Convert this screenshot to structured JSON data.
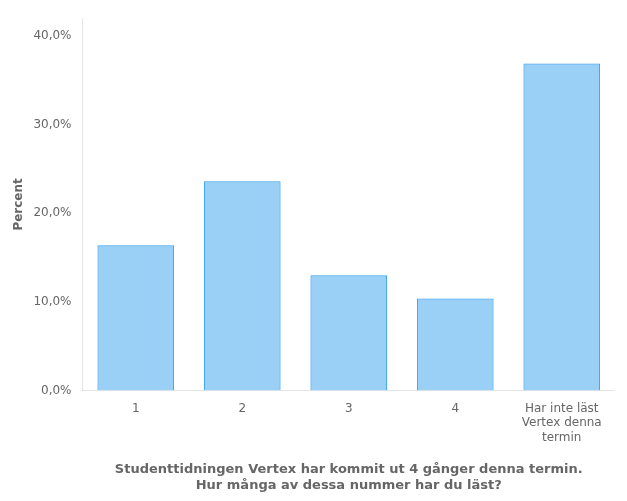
{
  "chart_data": {
    "type": "bar",
    "categories": [
      "1",
      "2",
      "3",
      "4",
      "Har inte läst\nVertex denna\ntermin"
    ],
    "values": [
      16.4,
      23.6,
      13.0,
      10.4,
      36.9
    ],
    "ylabel": "Percent",
    "xlabel": "Studenttidningen Vertex har kommit ut 4 gånger denna termin.\nHur många av dessa nummer har du läst?",
    "ylim": [
      0,
      42
    ],
    "yticks": [
      {
        "value": 0,
        "label": "0,0%"
      },
      {
        "value": 10,
        "label": "10,0%"
      },
      {
        "value": 20,
        "label": "20,0%"
      },
      {
        "value": 30,
        "label": "30,0%"
      },
      {
        "value": 40,
        "label": "40,0%"
      }
    ],
    "grid": false
  }
}
